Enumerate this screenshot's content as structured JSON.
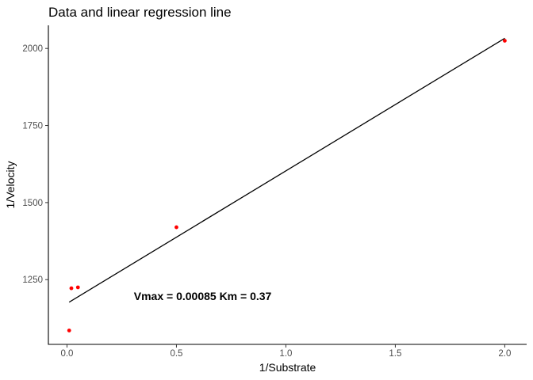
{
  "chart_data": {
    "type": "scatter",
    "title": "Data and linear regression line",
    "xlabel": "1/Substrate",
    "ylabel": "1/Velocity",
    "xlim": [
      -0.085,
      2.1
    ],
    "ylim": [
      1040,
      2075
    ],
    "x_ticks": [
      0.0,
      0.5,
      1.0,
      1.5,
      2.0
    ],
    "x_tick_labels": [
      "0.0",
      "0.5",
      "1.0",
      "1.5",
      "2.0"
    ],
    "y_ticks": [
      1250,
      1500,
      1750,
      2000
    ],
    "y_tick_labels": [
      "1250",
      "1500",
      "1750",
      "2000"
    ],
    "grid": false,
    "series": [
      {
        "type": "scatter",
        "color": "#ff0000",
        "points": [
          {
            "x": 0.01,
            "y": 1085
          },
          {
            "x": 0.02,
            "y": 1222
          },
          {
            "x": 0.05,
            "y": 1225
          },
          {
            "x": 0.5,
            "y": 1420
          },
          {
            "x": 2.0,
            "y": 2025
          }
        ]
      },
      {
        "type": "line",
        "color": "#000000",
        "points": [
          {
            "x": 0.01,
            "y": 1177
          },
          {
            "x": 2.0,
            "y": 2033
          }
        ]
      }
    ],
    "annotations": [
      {
        "text": "Vmax = 0.00085 Km = 0.37",
        "x": 0.62,
        "y": 1197
      }
    ]
  }
}
